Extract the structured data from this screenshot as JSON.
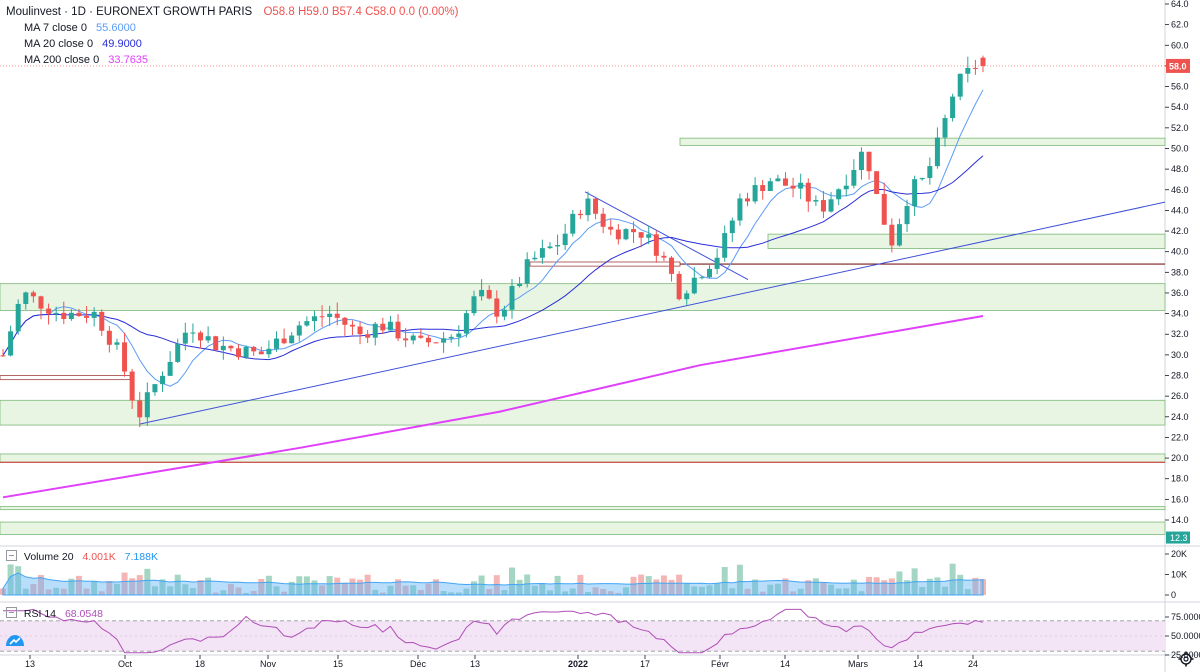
{
  "header": {
    "symbol": "Moulinvest · 1D · EURONEXT GROWTH PARIS",
    "ohlc": "O58.8 H59.0 B57.4 C58.0 0.0 (0.00%)"
  },
  "indicators": {
    "ma7": {
      "label": "MA 7 close 0",
      "value": "55.6000",
      "color": "#5b9cf6"
    },
    "ma20": {
      "label": "MA 20 close 0",
      "value": "49.9000",
      "color": "#2a2ed8"
    },
    "ma200": {
      "label": "MA 200 close 0",
      "value": "33.7635",
      "color": "#e040fb"
    }
  },
  "volume_legend": {
    "label": "Volume 20",
    "value1": "4.001K",
    "value2": "7.188K"
  },
  "rsi_legend": {
    "label": "RSI 14",
    "value": "68.0548"
  },
  "price_axis": {
    "ticks": [
      "64.0",
      "62.0",
      "60.0",
      "58.0",
      "56.0",
      "54.0",
      "52.0",
      "50.0",
      "48.0",
      "46.0",
      "44.0",
      "42.0",
      "40.0",
      "38.0",
      "36.0",
      "34.0",
      "32.0",
      "30.0",
      "28.0",
      "26.0",
      "24.0",
      "22.0",
      "20.0",
      "18.0",
      "16.0",
      "14.0"
    ],
    "last_price_label": "58.0",
    "last_price_color": "#ef5350",
    "low_label": "12.3",
    "low_color": "#26a69a"
  },
  "volume_axis": {
    "ticks": [
      "20K",
      "10K",
      "0"
    ]
  },
  "rsi_axis": {
    "ticks": [
      "75.0000",
      "50.0000",
      "25.0000"
    ]
  },
  "time_axis": {
    "labels": [
      "13",
      "Oct",
      "18",
      "Nov",
      "15",
      "Déc",
      "13",
      "2022",
      "17",
      "Févr",
      "14",
      "Mars",
      "14",
      "24"
    ]
  },
  "colors": {
    "up": "#26a69a",
    "down": "#ef5350",
    "zone_fill": "#e8f5e2",
    "zone_border": "#7cb878",
    "trendline": "#3f51d9",
    "rsi_line": "#b04db8",
    "rsi_band": "#f3e5f5"
  },
  "chart_data": {
    "type": "candlestick",
    "title": "Moulinvest · 1D · EURONEXT GROWTH PARIS",
    "ylim": [
      12.3,
      64
    ],
    "last_close": 58.0,
    "ma_last": {
      "ma7": 55.6,
      "ma20": 49.9,
      "ma200": 33.7635
    },
    "volume_last": {
      "volume": 4.001,
      "volume_ma20": 7.188,
      "unit": "K"
    },
    "rsi_last": 68.0548
  }
}
